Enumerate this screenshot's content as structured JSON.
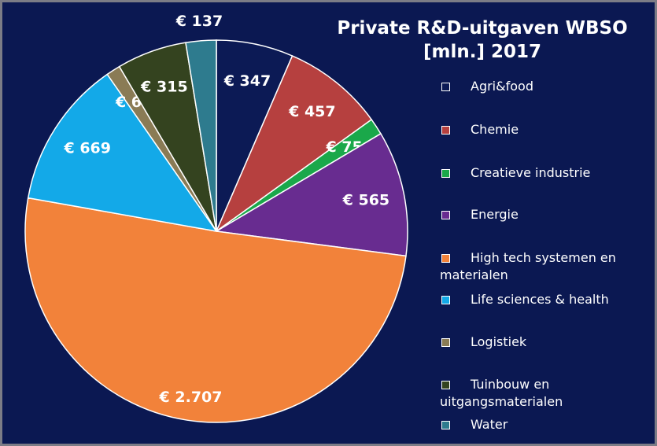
{
  "chart_data": {
    "type": "pie",
    "title": "Private R&D-uitgaven WBSO [mln.] 2017",
    "categories": [
      "Agri&food",
      "Chemie",
      "Creatieve industrie",
      "Energie",
      "High tech systemen en materialen",
      "Life sciences & health",
      "Logistiek",
      "Tuinbouw en uitgangsmaterialen",
      "Water"
    ],
    "values": [
      347,
      457,
      75,
      565,
      2707,
      669,
      64,
      315,
      137
    ],
    "value_labels": [
      "€ 347",
      "€ 457",
      "€ 75",
      "€ 565",
      "€ 2.707",
      "€ 669",
      "€ 64",
      "€ 315",
      "€ 137"
    ],
    "colors": [
      "#0c1a55",
      "#b6403f",
      "#1aa84a",
      "#682c90",
      "#f2823a",
      "#13a9e8",
      "#8a7b55",
      "#34431f",
      "#2e7b8e"
    ]
  }
}
